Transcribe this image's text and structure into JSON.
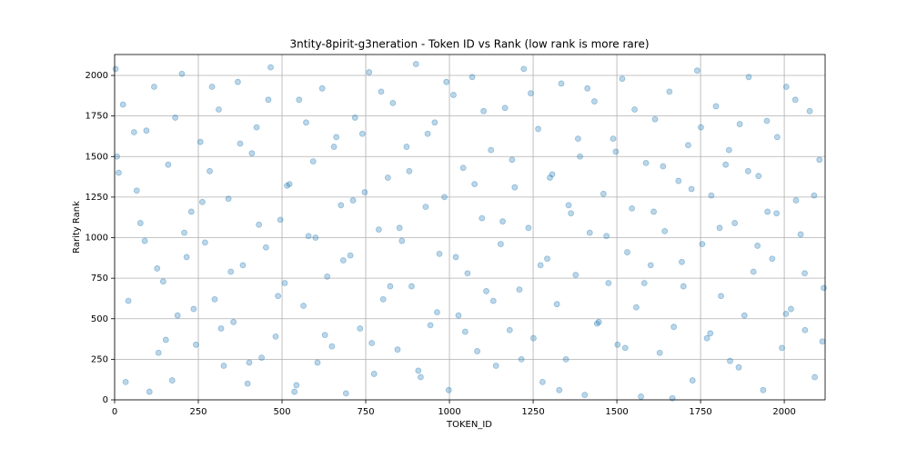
{
  "chart_data": {
    "type": "scatter",
    "title": "3ntity-8pirit-g3neration - Token ID vs Rank (low rank is more rare)",
    "x_label": "TOKEN_ID",
    "y_label": "Rarity Rank",
    "color": "#1f77b4",
    "alpha": 0.3,
    "grid": true,
    "xlim": [
      0,
      2122
    ],
    "ylim": [
      0,
      2129
    ],
    "xticks": [
      0,
      250,
      500,
      750,
      1000,
      1250,
      1500,
      1750,
      2000
    ],
    "yticks": [
      0,
      250,
      500,
      750,
      1000,
      1250,
      1500,
      1750,
      2000
    ],
    "x": [
      3,
      12,
      25,
      41,
      58,
      77,
      90,
      104,
      118,
      131,
      145,
      160,
      172,
      188,
      201,
      215,
      229,
      243,
      256,
      270,
      284,
      299,
      311,
      326,
      340,
      355,
      368,
      383,
      397,
      410,
      424,
      439,
      452,
      466,
      481,
      495,
      508,
      522,
      537,
      551,
      564,
      579,
      593,
      606,
      620,
      635,
      649,
      662,
      676,
      691,
      704,
      718,
      733,
      747,
      760,
      775,
      789,
      802,
      816,
      831,
      845,
      858,
      872,
      887,
      900,
      914,
      929,
      943,
      956,
      970,
      985,
      998,
      1012,
      1027,
      1041,
      1054,
      1068,
      1083,
      1097,
      1110,
      1124,
      1139,
      1153,
      1166,
      1180,
      1195,
      1209,
      1222,
      1236,
      1251,
      1265,
      1278,
      1292,
      1307,
      1321,
      1334,
      1348,
      1363,
      1377,
      1390,
      1404,
      1419,
      1433,
      1446,
      1460,
      1475,
      1489,
      1502,
      1516,
      1531,
      1545,
      1558,
      1572,
      1587,
      1601,
      1614,
      1628,
      1643,
      1657,
      1670,
      1684,
      1699,
      1713,
      1726,
      1740,
      1755,
      1769,
      1782,
      1796,
      1811,
      1825,
      1838,
      1852,
      1867,
      1881,
      1894,
      1908,
      1923,
      1937,
      1950,
      1964,
      1979,
      1993,
      2006,
      2020,
      2035,
      2049,
      2062,
      2076,
      2091,
      2105,
      2118,
      7,
      33,
      66,
      95,
      127,
      153,
      181,
      208,
      236,
      262,
      291,
      318,
      347,
      375,
      402,
      431,
      459,
      488,
      515,
      543,
      572,
      600,
      628,
      655,
      683,
      712,
      740,
      768,
      796,
      823,
      851,
      880,
      907,
      935,
      963,
      991,
      1019,
      1047,
      1075,
      1102,
      1131,
      1159,
      1187,
      1215,
      1243,
      1272,
      1300,
      1328,
      1356,
      1384,
      1412,
      1441,
      1469,
      1497,
      1525,
      1553,
      1582,
      1610,
      1638,
      1666,
      1694,
      1723,
      1751,
      1779,
      1807,
      1835,
      1864,
      1892,
      1920,
      1948,
      1977,
      2005,
      2033,
      2061,
      2089,
      2114
    ],
    "values": [
      2040,
      1400,
      1820,
      610,
      1650,
      1090,
      980,
      50,
      1930,
      290,
      730,
      1450,
      120,
      520,
      2010,
      880,
      1160,
      340,
      1590,
      970,
      1410,
      620,
      1790,
      210,
      1240,
      480,
      1960,
      830,
      100,
      1520,
      1680,
      260,
      940,
      2050,
      390,
      1110,
      720,
      1330,
      50,
      1850,
      580,
      1010,
      1470,
      230,
      1920,
      760,
      330,
      1620,
      1200,
      40,
      890,
      1740,
      440,
      1280,
      2020,
      160,
      1050,
      620,
      1370,
      1830,
      310,
      980,
      1560,
      700,
      2070,
      140,
      1190,
      460,
      1710,
      900,
      1250,
      60,
      1880,
      520,
      1430,
      780,
      1990,
      300,
      1120,
      670,
      1540,
      210,
      960,
      1800,
      430,
      1310,
      680,
      2040,
      1060,
      380,
      1670,
      110,
      870,
      1390,
      590,
      1950,
      250,
      1150,
      770,
      1500,
      30,
      1030,
      1840,
      480,
      1270,
      720,
      1610,
      340,
      1980,
      910,
      1180,
      570,
      20,
      1460,
      830,
      1730,
      290,
      1040,
      1900,
      450,
      1350,
      700,
      1570,
      120,
      2030,
      960,
      380,
      1260,
      1810,
      640,
      1450,
      240,
      1090,
      1700,
      520,
      1990,
      790,
      1380,
      60,
      1160,
      870,
      1620,
      320,
      1930,
      560,
      1230,
      1020,
      430,
      1780,
      140,
      1480,
      690,
      1500,
      110,
      1290,
      1660,
      810,
      370,
      1740,
      1030,
      560,
      1220,
      1930,
      440,
      790,
      1580,
      230,
      1080,
      1850,
      640,
      1320,
      90,
      1710,
      1000,
      400,
      1560,
      860,
      1230,
      1640,
      350,
      1900,
      700,
      1060,
      1410,
      180,
      1640,
      540,
      1960,
      880,
      420,
      1330,
      1780,
      610,
      1100,
      1480,
      250,
      1890,
      830,
      1370,
      60,
      1200,
      1610,
      1920,
      470,
      1010,
      1530,
      320,
      1790,
      720,
      1160,
      1440,
      10,
      850,
      1300,
      1680,
      410,
      1060,
      1540,
      200,
      1410,
      950,
      1720,
      1150,
      530,
      1850,
      780,
      1260,
      360
    ]
  }
}
